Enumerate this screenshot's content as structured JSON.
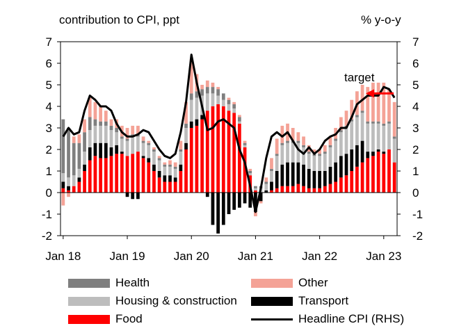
{
  "chart_data": {
    "type": "bar",
    "stacked": true,
    "title": "contribution  to CPI, ppt",
    "right_title": "% y-o-y",
    "annotation": "target",
    "target_value": 4.6,
    "ylim": [
      -2,
      7
    ],
    "y2lim": [
      -2,
      7
    ],
    "yticks": [
      -2,
      -1,
      0,
      1,
      2,
      3,
      4,
      5,
      6,
      7
    ],
    "xtick_labels": [
      "Jan 18",
      "Jan 19",
      "Jan 20",
      "Jan 21",
      "Jan 22",
      "Jan 23"
    ],
    "xtick_index": [
      0,
      12,
      24,
      36,
      48,
      60
    ],
    "months": 63,
    "series": [
      {
        "name": "Food",
        "key": "food",
        "color": "#ff0000",
        "values": [
          0.2,
          0.1,
          0.3,
          0.5,
          1.0,
          1.5,
          1.7,
          1.6,
          1.6,
          1.7,
          1.8,
          1.8,
          1.7,
          1.8,
          1.9,
          1.6,
          1.4,
          1.0,
          0.7,
          0.5,
          0.5,
          0.5,
          1.0,
          2.0,
          3.0,
          3.1,
          3.4,
          3.8,
          4.0,
          4.1,
          4.0,
          3.8,
          3.7,
          3.2,
          2.1,
          0.8,
          0.1,
          0.0,
          0.0,
          0.1,
          0.2,
          0.3,
          0.3,
          0.3,
          0.4,
          0.3,
          0.2,
          0.2,
          0.2,
          0.3,
          0.4,
          0.5,
          0.7,
          0.8,
          1.0,
          1.2,
          1.4,
          1.6,
          1.7,
          1.9,
          1.8,
          2.0,
          1.4
        ]
      },
      {
        "name": "Transport",
        "key": "transport",
        "color": "#000000",
        "values": [
          0.3,
          0.2,
          0.0,
          0.2,
          0.3,
          0.6,
          0.6,
          0.7,
          0.7,
          0.4,
          0.4,
          0.1,
          -0.2,
          -0.3,
          -0.3,
          0.1,
          0.2,
          0.3,
          0.3,
          0.3,
          0.3,
          0.2,
          0.3,
          0.3,
          0.3,
          0.3,
          0.2,
          -0.2,
          -1.5,
          -1.9,
          -1.5,
          -1.0,
          -0.8,
          -0.7,
          -0.5,
          -0.7,
          -0.9,
          -0.4,
          0.1,
          0.4,
          0.8,
          1.0,
          1.1,
          1.1,
          1.0,
          1.0,
          0.9,
          0.8,
          0.8,
          0.7,
          0.8,
          0.9,
          1.0,
          1.0,
          1.0,
          1.0,
          1.0,
          0.3,
          0.2,
          0.1,
          0.1,
          0.0,
          0.0
        ]
      },
      {
        "name": "Housing & construction",
        "key": "housing",
        "color": "#bdbdbd",
        "values": [
          0.4,
          0.4,
          0.5,
          0.4,
          0.6,
          0.8,
          0.8,
          0.8,
          0.8,
          0.8,
          0.6,
          0.6,
          0.7,
          0.8,
          0.7,
          0.6,
          0.6,
          0.6,
          0.5,
          0.4,
          0.4,
          0.4,
          0.6,
          0.7,
          1.0,
          1.0,
          0.9,
          0.8,
          0.6,
          0.4,
          0.3,
          0.3,
          0.2,
          0.1,
          0.1,
          0.1,
          0.1,
          0.2,
          0.3,
          0.5,
          0.7,
          0.9,
          0.9,
          0.9,
          0.9,
          0.8,
          0.7,
          0.7,
          0.7,
          0.8,
          0.9,
          1.0,
          1.1,
          1.2,
          1.3,
          1.3,
          1.3,
          1.3,
          1.3,
          1.2,
          1.2,
          1.2,
          1.1
        ]
      },
      {
        "name": "Health",
        "key": "health",
        "color": "#7f7f7f",
        "values": [
          2.5,
          2.3,
          1.5,
          1.2,
          0.9,
          0.6,
          0.3,
          0.2,
          0.2,
          0.2,
          0.2,
          0.1,
          0.1,
          0.1,
          0.1,
          0.1,
          0.1,
          0.1,
          0.1,
          0.1,
          0.1,
          0.1,
          0.1,
          0.2,
          0.3,
          0.3,
          0.3,
          0.3,
          0.3,
          0.3,
          0.3,
          0.2,
          0.2,
          0.2,
          0.1,
          0.1,
          0.1,
          0.1,
          0.1,
          0.1,
          0.1,
          0.1,
          0.1,
          0.1,
          0.1,
          0.1,
          0.1,
          0.1,
          0.1,
          0.1,
          0.1,
          0.1,
          0.1,
          0.1,
          0.1,
          0.1,
          0.1,
          0.1,
          0.1,
          0.1,
          0.1,
          0.1,
          0.1
        ]
      },
      {
        "name": "Other",
        "key": "other",
        "color": "#f4a296",
        "values": [
          -0.6,
          -0.2,
          0.3,
          0.4,
          0.6,
          0.9,
          0.8,
          0.7,
          0.5,
          0.3,
          0.4,
          0.5,
          0.5,
          0.4,
          0.4,
          0.2,
          0.1,
          0.1,
          0.1,
          0.1,
          0.2,
          0.2,
          0.4,
          1.0,
          1.6,
          0.8,
          0.2,
          0.3,
          0.2,
          0.1,
          0.0,
          0.1,
          0.1,
          0.1,
          0.1,
          0.1,
          -0.2,
          -0.1,
          0.2,
          0.5,
          0.7,
          0.8,
          0.8,
          0.6,
          0.4,
          0.4,
          0.3,
          0.2,
          0.2,
          0.3,
          0.4,
          0.5,
          0.6,
          0.7,
          0.9,
          1.1,
          1.2,
          1.6,
          1.8,
          1.8,
          1.9,
          1.5,
          1.6
        ]
      },
      {
        "name": "Headline CPI (RHS)",
        "key": "headline",
        "color": "#000000",
        "type": "line",
        "values": [
          2.6,
          3.0,
          2.7,
          2.8,
          3.8,
          4.5,
          4.3,
          4.0,
          4.0,
          3.8,
          3.2,
          2.8,
          2.6,
          2.6,
          2.7,
          2.9,
          2.8,
          2.4,
          2.0,
          1.7,
          1.6,
          1.8,
          2.8,
          4.2,
          6.4,
          5.1,
          4.0,
          2.9,
          3.0,
          3.3,
          3.4,
          3.2,
          3.0,
          2.0,
          1.4,
          0.3,
          -0.9,
          0.2,
          1.6,
          2.6,
          2.8,
          2.6,
          2.8,
          2.4,
          2.0,
          1.8,
          2.1,
          1.8,
          2.0,
          2.4,
          2.6,
          2.7,
          3.0,
          3.0,
          3.5,
          4.1,
          4.3,
          4.5,
          4.5,
          4.5,
          4.9,
          4.8,
          4.4
        ]
      }
    ],
    "legend": [
      {
        "label": "Health",
        "color": "#7f7f7f",
        "kind": "box"
      },
      {
        "label": "Other",
        "color": "#f4a296",
        "kind": "box"
      },
      {
        "label": "Housing & construction",
        "color": "#bdbdbd",
        "kind": "box"
      },
      {
        "label": "Transport",
        "color": "#000000",
        "kind": "box"
      },
      {
        "label": "Food",
        "color": "#ff0000",
        "kind": "box"
      },
      {
        "label": "Headline CPI (RHS)",
        "color": "#000000",
        "kind": "line"
      }
    ],
    "colors": {
      "target_arrow": "#ff0000"
    }
  }
}
